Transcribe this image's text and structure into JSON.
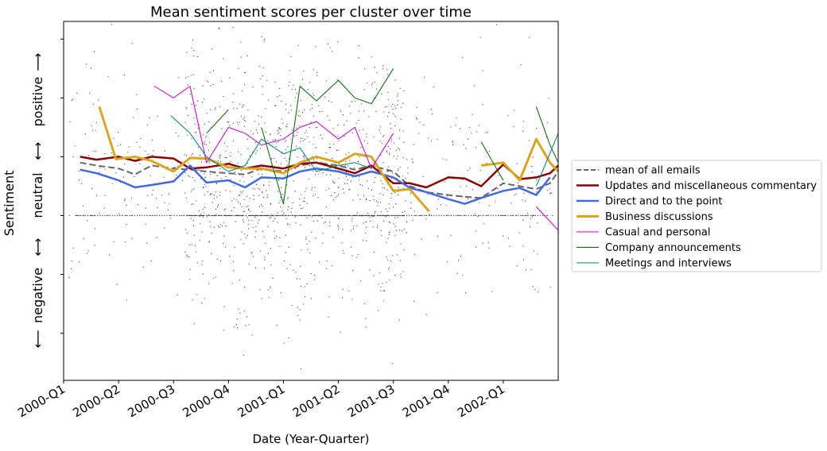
{
  "chart_data": {
    "type": "line",
    "title": "Mean sentiment scores per cluster over time",
    "xlabel": "Date (Year-Quarter)",
    "ylabel": "Sentiment",
    "x_tick_labels": [
      "2000-Q1",
      "2000-Q2",
      "2000-Q3",
      "2000-Q4",
      "2001-Q1",
      "2001-Q2",
      "2001-Q3",
      "2001-Q4",
      "2002-Q1"
    ],
    "y_band_labels": [
      "positive",
      "neutral",
      "negative"
    ],
    "y_band_arrows": [
      "⟶",
      "⟷",
      "⟷",
      "⟵"
    ],
    "xlim": [
      0,
      9
    ],
    "ylim": [
      -2.8,
      3.3
    ],
    "legend_position": "right",
    "scatter_note": "individual email scores (grey dots)",
    "series": [
      {
        "name": "mean of all emails",
        "color": "#666666",
        "width": 2,
        "dash": "8,4",
        "points": [
          [
            0.3,
            0.9
          ],
          [
            0.6,
            0.85
          ],
          [
            1.0,
            0.8
          ],
          [
            1.3,
            0.7
          ],
          [
            1.6,
            0.85
          ],
          [
            2.0,
            0.8
          ],
          [
            2.3,
            0.78
          ],
          [
            2.6,
            0.75
          ],
          [
            3.0,
            0.72
          ],
          [
            3.3,
            0.7
          ],
          [
            3.6,
            0.8
          ],
          [
            4.0,
            0.75
          ],
          [
            4.3,
            0.85
          ],
          [
            4.6,
            0.9
          ],
          [
            5.0,
            0.85
          ],
          [
            5.3,
            0.78
          ],
          [
            5.6,
            0.85
          ],
          [
            6.0,
            0.75
          ],
          [
            6.3,
            0.5
          ],
          [
            6.6,
            0.4
          ],
          [
            7.0,
            0.35
          ],
          [
            7.3,
            0.32
          ],
          [
            7.6,
            0.3
          ],
          [
            8.0,
            0.55
          ],
          [
            8.3,
            0.5
          ],
          [
            8.6,
            0.45
          ],
          [
            8.85,
            0.55
          ],
          [
            9.0,
            0.75
          ]
        ]
      },
      {
        "name": "Updates and miscellaneous commentary",
        "color": "#8b0000",
        "width": 2.5,
        "points": [
          [
            0.3,
            1.0
          ],
          [
            0.6,
            0.95
          ],
          [
            1.0,
            1.0
          ],
          [
            1.3,
            0.93
          ],
          [
            1.6,
            1.0
          ],
          [
            2.0,
            0.97
          ],
          [
            2.3,
            0.8
          ],
          [
            2.6,
            0.82
          ],
          [
            3.0,
            0.88
          ],
          [
            3.3,
            0.8
          ],
          [
            3.6,
            0.85
          ],
          [
            4.0,
            0.8
          ],
          [
            4.3,
            0.88
          ],
          [
            4.6,
            0.9
          ],
          [
            5.0,
            0.8
          ],
          [
            5.3,
            0.72
          ],
          [
            5.6,
            0.85
          ],
          [
            6.0,
            0.55
          ],
          [
            6.3,
            0.55
          ],
          [
            6.6,
            0.48
          ],
          [
            7.0,
            0.65
          ],
          [
            7.3,
            0.63
          ],
          [
            7.6,
            0.5
          ],
          [
            8.0,
            0.87
          ],
          [
            8.3,
            0.62
          ],
          [
            8.6,
            0.65
          ],
          [
            8.85,
            0.72
          ],
          [
            9.0,
            0.85
          ]
        ]
      },
      {
        "name": "Direct and to the point",
        "color": "#4169e1",
        "width": 2.5,
        "points": [
          [
            0.3,
            0.78
          ],
          [
            0.6,
            0.72
          ],
          [
            1.0,
            0.6
          ],
          [
            1.3,
            0.48
          ],
          [
            1.6,
            0.52
          ],
          [
            2.0,
            0.58
          ],
          [
            2.3,
            0.85
          ],
          [
            2.6,
            0.56
          ],
          [
            3.0,
            0.6
          ],
          [
            3.3,
            0.48
          ],
          [
            3.6,
            0.65
          ],
          [
            4.0,
            0.63
          ],
          [
            4.3,
            0.75
          ],
          [
            4.6,
            0.8
          ],
          [
            5.0,
            0.75
          ],
          [
            5.3,
            0.67
          ],
          [
            5.6,
            0.75
          ],
          [
            6.0,
            0.65
          ],
          [
            6.3,
            0.47
          ],
          [
            6.6,
            0.4
          ],
          [
            7.0,
            0.28
          ],
          [
            7.3,
            0.2
          ],
          [
            7.6,
            0.3
          ],
          [
            8.0,
            0.42
          ],
          [
            8.3,
            0.47
          ],
          [
            8.6,
            0.35
          ],
          [
            8.85,
            0.65
          ]
        ]
      },
      {
        "name": "Business discussions",
        "color": "#daa520",
        "width": 3,
        "points": [
          [
            0.65,
            1.85
          ],
          [
            0.95,
            0.96
          ],
          [
            1.3,
            1.0
          ],
          [
            1.6,
            0.93
          ],
          [
            2.0,
            0.75
          ],
          [
            2.3,
            0.98
          ],
          [
            2.6,
            0.97
          ],
          [
            3.0,
            0.82
          ],
          [
            3.3,
            0.8
          ],
          [
            3.6,
            0.8
          ],
          [
            4.0,
            0.72
          ],
          [
            4.3,
            0.9
          ],
          [
            4.6,
            1.0
          ],
          [
            5.0,
            0.9
          ],
          [
            5.3,
            1.05
          ],
          [
            5.6,
            1.0
          ],
          [
            6.0,
            0.42
          ],
          [
            6.3,
            0.45
          ],
          [
            6.65,
            0.07
          ],
          null,
          [
            7.6,
            0.85
          ],
          [
            8.0,
            0.9
          ],
          [
            8.3,
            0.6
          ],
          [
            8.6,
            1.3
          ],
          [
            8.85,
            0.9
          ],
          [
            9.0,
            0.75
          ]
        ]
      },
      {
        "name": "Casual and personal",
        "color": "#cc00cc",
        "width": 1,
        "points": [
          [
            1.65,
            2.2
          ],
          [
            2.0,
            2.0
          ],
          [
            2.3,
            2.2
          ],
          [
            2.6,
            0.9
          ],
          [
            3.0,
            1.5
          ],
          [
            3.3,
            1.4
          ],
          [
            3.6,
            1.2
          ],
          [
            4.0,
            1.3
          ],
          [
            4.3,
            1.5
          ],
          [
            4.6,
            1.6
          ],
          [
            5.0,
            1.3
          ],
          [
            5.3,
            1.5
          ],
          [
            5.6,
            0.8
          ],
          [
            6.0,
            1.4
          ],
          null,
          [
            8.6,
            0.15
          ],
          [
            9.0,
            -0.25
          ]
        ]
      },
      {
        "name": "Company announcements",
        "color": "#006400",
        "width": 1,
        "points": [
          [
            2.6,
            1.4
          ],
          [
            3.0,
            1.8
          ],
          null,
          [
            3.6,
            1.5
          ],
          [
            4.0,
            0.2
          ],
          [
            4.3,
            2.2
          ],
          [
            4.6,
            1.95
          ],
          [
            5.0,
            2.3
          ],
          [
            5.3,
            2.0
          ],
          [
            5.6,
            1.9
          ],
          [
            6.0,
            2.5
          ],
          null,
          [
            7.6,
            1.25
          ],
          [
            8.0,
            0.6
          ],
          null,
          [
            8.6,
            1.85
          ],
          [
            8.85,
            1.2
          ],
          [
            9.0,
            0.9
          ]
        ]
      },
      {
        "name": "Meetings and interviews",
        "color": "#008080",
        "width": 1,
        "points": [
          [
            1.95,
            1.7
          ],
          [
            2.3,
            1.4
          ],
          [
            2.6,
            1.0
          ],
          [
            3.0,
            0.75
          ],
          [
            3.3,
            0.85
          ],
          [
            3.6,
            1.3
          ],
          [
            4.0,
            1.05
          ],
          [
            4.3,
            1.15
          ],
          [
            4.6,
            0.75
          ],
          [
            5.0,
            0.85
          ],
          [
            5.3,
            0.9
          ],
          [
            5.6,
            0.8
          ],
          null,
          [
            8.6,
            0.5
          ],
          [
            9.0,
            1.4
          ]
        ]
      }
    ]
  }
}
